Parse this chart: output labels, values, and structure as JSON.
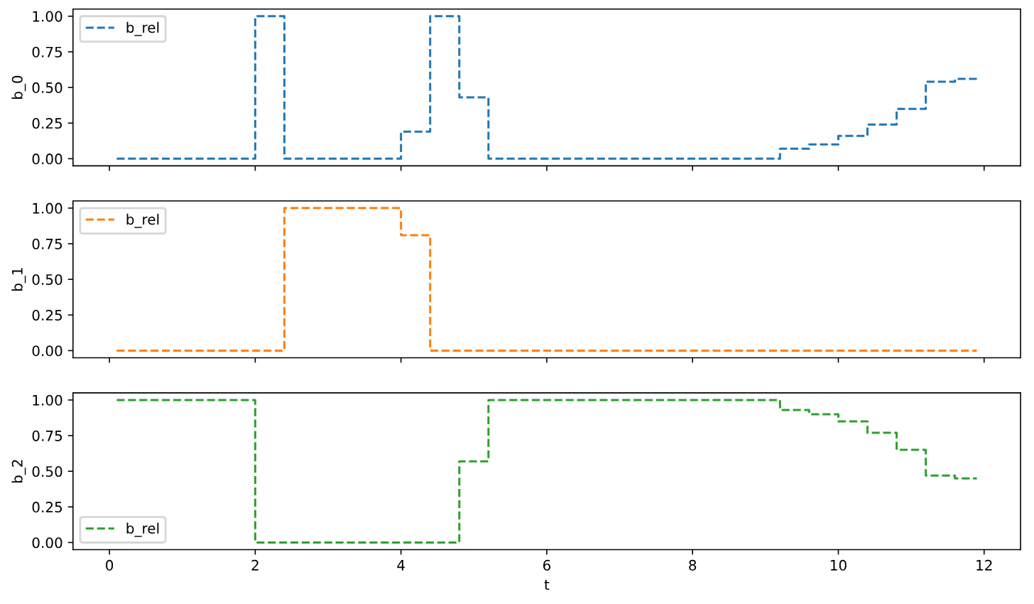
{
  "chart_data": [
    {
      "type": "step",
      "ylabel": "b_0",
      "xlim": [
        -0.5,
        12.5
      ],
      "xticks": [
        0,
        2,
        4,
        6,
        8,
        10,
        12
      ],
      "ylim": [
        -0.05,
        1.05
      ],
      "yticks": [
        {
          "value": 0,
          "label": "0.00"
        },
        {
          "value": 0.25,
          "label": "0.25"
        },
        {
          "value": 0.5,
          "label": "0.50"
        },
        {
          "value": 0.75,
          "label": "0.75"
        },
        {
          "value": 1,
          "label": "1.00"
        }
      ],
      "tick_labels": "y",
      "legend": "top left",
      "line_style": "dashed",
      "series": [
        {
          "name": "b_rel",
          "color": "#1f77b4",
          "x": [
            0.1,
            2.0,
            2.4,
            4.0,
            4.4,
            4.8,
            5.2,
            9.2,
            9.6,
            10.0,
            10.4,
            10.8,
            11.2,
            11.6,
            11.9
          ],
          "values": [
            0,
            1,
            0,
            0.19,
            1,
            0.43,
            0,
            0.07,
            0.1,
            0.16,
            0.24,
            0.35,
            0.54,
            0.56,
            0.56
          ]
        }
      ]
    },
    {
      "type": "step",
      "ylabel": "b_1",
      "xlim": [
        -0.5,
        12.5
      ],
      "xticks": [
        0,
        2,
        4,
        6,
        8,
        10,
        12
      ],
      "ylim": [
        -0.05,
        1.05
      ],
      "yticks": [
        {
          "value": 0,
          "label": "0.00"
        },
        {
          "value": 0.25,
          "label": "0.25"
        },
        {
          "value": 0.5,
          "label": "0.50"
        },
        {
          "value": 0.75,
          "label": "0.75"
        },
        {
          "value": 1,
          "label": "1.00"
        }
      ],
      "tick_labels": "y",
      "legend": "top left",
      "line_style": "dashed",
      "series": [
        {
          "name": "b_rel",
          "color": "#ff7f0e",
          "x": [
            0.1,
            2.4,
            4.0,
            4.4,
            11.9
          ],
          "values": [
            0,
            1,
            0.81,
            0,
            0
          ]
        }
      ]
    },
    {
      "type": "step",
      "xlabel": "t",
      "ylabel": "b_2",
      "xlim": [
        -0.5,
        12.5
      ],
      "xticks": [
        0,
        2,
        4,
        6,
        8,
        10,
        12
      ],
      "ylim": [
        -0.05,
        1.05
      ],
      "yticks": [
        {
          "value": 0,
          "label": "0.00"
        },
        {
          "value": 0.25,
          "label": "0.25"
        },
        {
          "value": 0.5,
          "label": "0.50"
        },
        {
          "value": 0.75,
          "label": "0.75"
        },
        {
          "value": 1,
          "label": "1.00"
        }
      ],
      "legend": "bottom left",
      "line_style": "dashed",
      "series": [
        {
          "name": "b_rel",
          "color": "#2ca02c",
          "x": [
            0.1,
            2.0,
            4.8,
            5.2,
            9.2,
            9.6,
            10.0,
            10.4,
            10.8,
            11.2,
            11.6,
            11.9
          ],
          "values": [
            1,
            0,
            0.57,
            1,
            0.93,
            0.9,
            0.85,
            0.77,
            0.65,
            0.47,
            0.45,
            0.45
          ]
        }
      ]
    }
  ]
}
